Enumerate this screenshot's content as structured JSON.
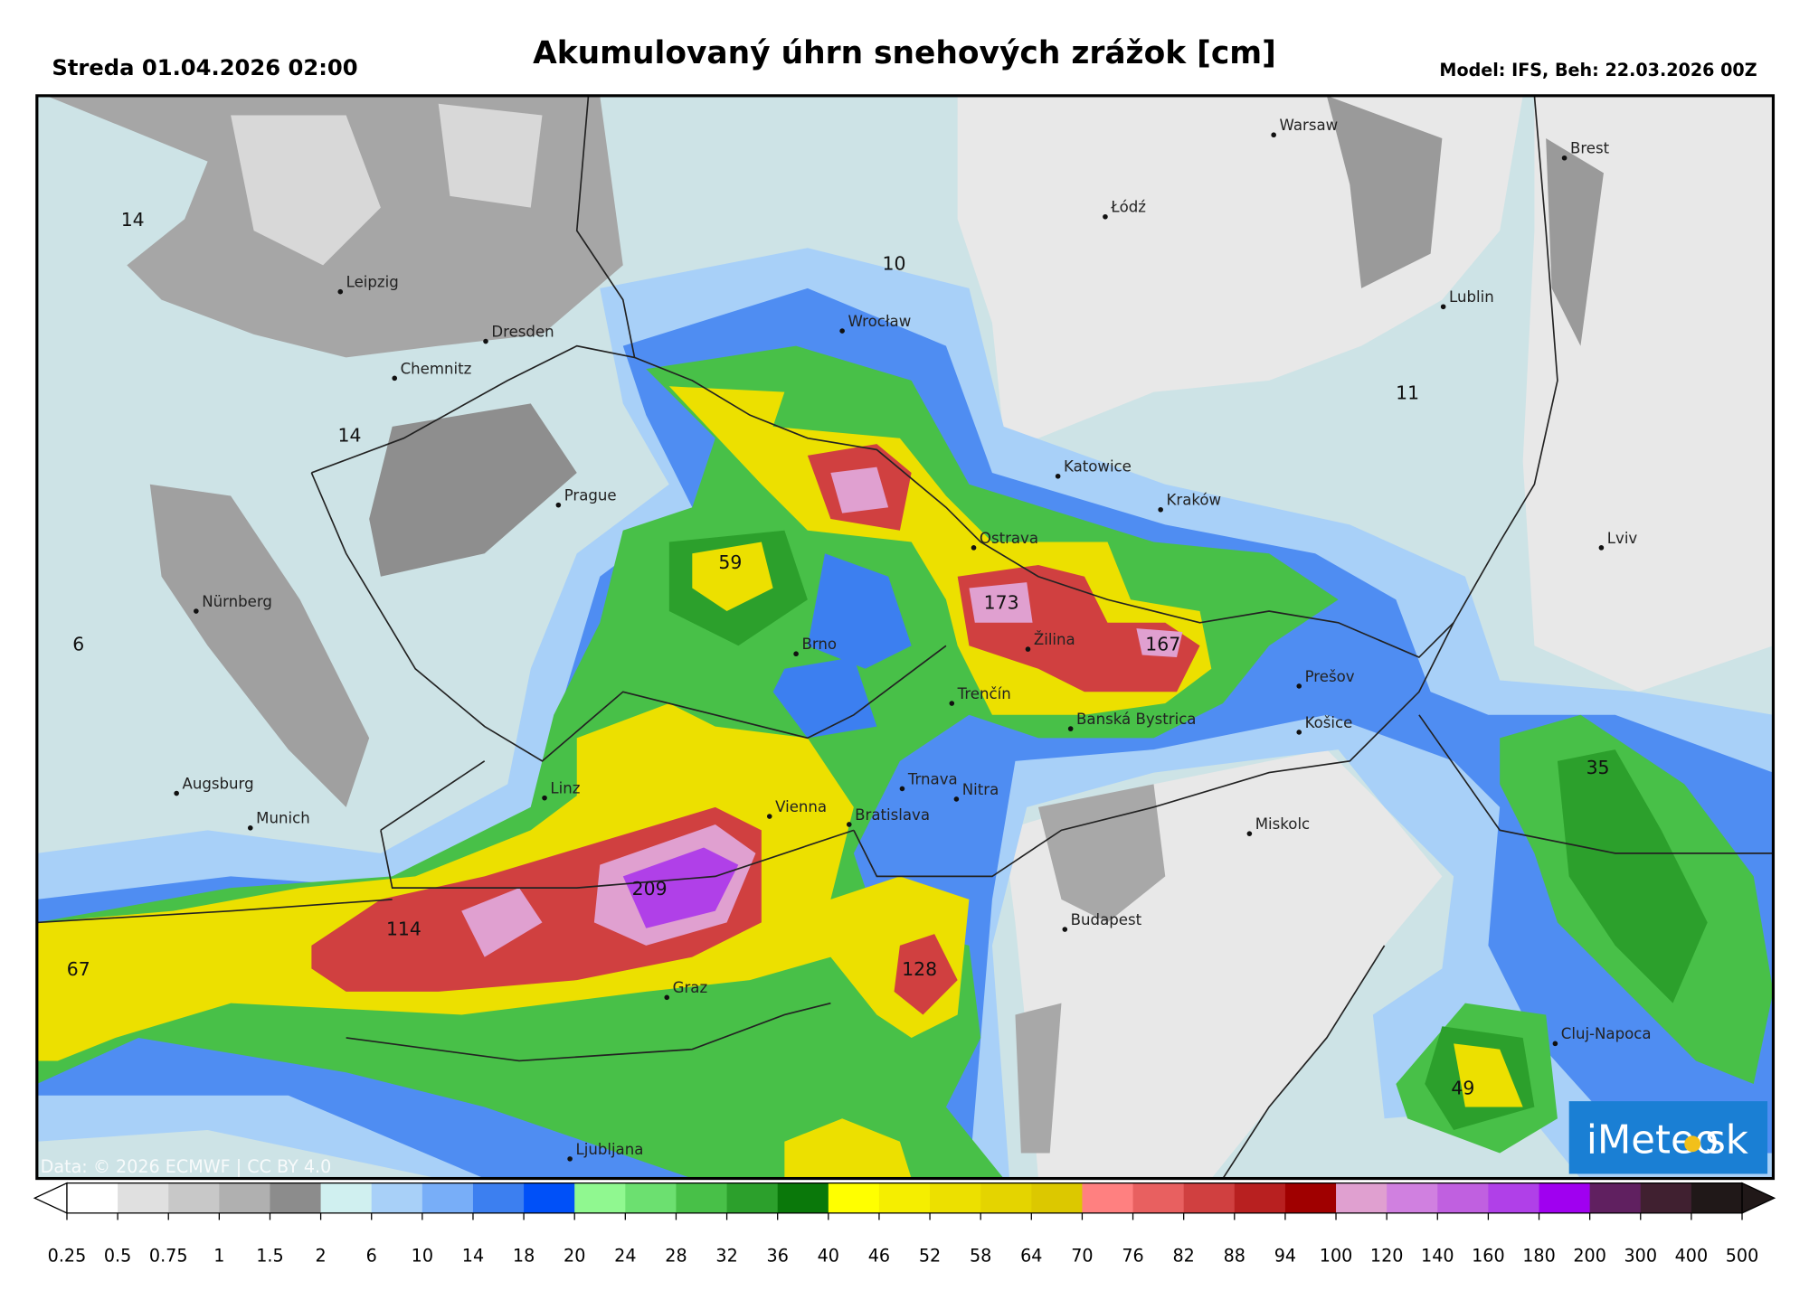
{
  "header": {
    "date": "Streda 01.04.2026 02:00",
    "title": "Akumulovaný úhrn snehových zrážok [cm]",
    "model": "Model: IFS, Beh: 22.03.2026 00Z"
  },
  "map": {
    "cities": [
      "Warsaw",
      "Brest",
      "Łódź",
      "Leipzig",
      "Dresden",
      "Wrocław",
      "Lublin",
      "Chemnitz",
      "Katowice",
      "Kraków",
      "Prague",
      "Ostrava",
      "Lviv",
      "Nürnberg",
      "Žilina",
      "Brno",
      "Prešov",
      "Trenčín",
      "Banská Bystrica",
      "Košice",
      "Augsburg",
      "Linz",
      "Trnava",
      "Nitra",
      "Munich",
      "Miskolc",
      "Vienna",
      "Bratislava",
      "Budapest",
      "Graz",
      "Cluj-Napoca",
      "Ljubljana"
    ],
    "values": [
      "14",
      "14",
      "10",
      "11",
      "59",
      "6",
      "173",
      "167",
      "209",
      "114",
      "67",
      "128",
      "35",
      "49"
    ],
    "credit": "Data: © 2026 ECMWF | CC BY 4.0",
    "logo_left": "iMeteo",
    "logo_right": "sk"
  },
  "legend": {
    "ticks": [
      "0.25",
      "0.5",
      "0.75",
      "1",
      "1.5",
      "2",
      "6",
      "10",
      "14",
      "18",
      "20",
      "24",
      "28",
      "32",
      "36",
      "40",
      "46",
      "52",
      "58",
      "64",
      "70",
      "76",
      "82",
      "88",
      "94",
      "100",
      "120",
      "140",
      "160",
      "180",
      "200",
      "300",
      "400",
      "500"
    ],
    "colors": [
      "#ffffff",
      "#e0e0e0",
      "#c8c8c8",
      "#b0b0b0",
      "#8c8c8c",
      "#d0f0f0",
      "#a8d0f8",
      "#78aef8",
      "#3c7ff0",
      "#0050f8",
      "#90f890",
      "#6ce070",
      "#48c048",
      "#2ca02c",
      "#0a780a",
      "#ffff00",
      "#f5ee00",
      "#ece000",
      "#e4d400",
      "#dcc800",
      "#ff8080",
      "#e86060",
      "#d04040",
      "#b82020",
      "#a00000",
      "#e0a0d0",
      "#d080e0",
      "#c060e0",
      "#b040e8",
      "#a000f0",
      "#602060",
      "#402030",
      "#201818"
    ]
  }
}
